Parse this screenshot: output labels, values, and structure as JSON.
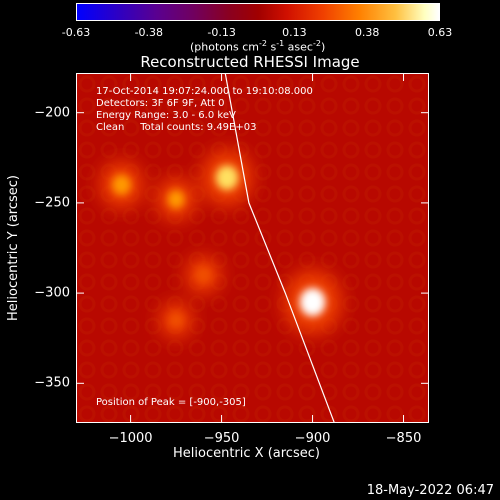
{
  "colorbar": {
    "ticks": [
      "-0.63",
      "-0.38",
      "-0.13",
      "0.13",
      "0.38",
      "0.63"
    ],
    "units_text": "(photons cm",
    "units_exp1": "-2",
    "units_mid": " s",
    "units_exp2": "-1",
    "units_mid2": " asec",
    "units_exp3": "-2",
    "units_end": ")"
  },
  "chart_data": {
    "type": "heatmap",
    "title": "Reconstructed RHESSI Image",
    "xlabel": "Heliocentric X (arcsec)",
    "ylabel": "Heliocentric Y (arcsec)",
    "xlim": [
      -1030,
      -836
    ],
    "ylim": [
      -372,
      -178
    ],
    "xticks": [
      -1000,
      -950,
      -900,
      -850
    ],
    "yticks": [
      -200,
      -250,
      -300,
      -350
    ],
    "value_range": [
      -0.63,
      0.63
    ],
    "colormap": "red-temperature",
    "sources": [
      {
        "x": -900,
        "y": -305,
        "value": 0.63
      },
      {
        "x": -947,
        "y": -236,
        "value": 0.52
      },
      {
        "x": -1005,
        "y": -240,
        "value": 0.38
      },
      {
        "x": -975,
        "y": -248,
        "value": 0.32
      },
      {
        "x": -960,
        "y": -290,
        "value": 0.25
      },
      {
        "x": -975,
        "y": -315,
        "value": 0.22
      }
    ],
    "limb_line": [
      [
        -948,
        -178
      ],
      [
        -935,
        -250
      ],
      [
        -915,
        -300
      ],
      [
        -888,
        -372
      ]
    ],
    "annotations": {
      "line1": "17-Oct-2014 19:07:24.000 to 19:10:08.000",
      "line2": "Detectors: 3F 6F 9F, Att 0",
      "line3": "Energy Range: 3.0 - 6.0 keV",
      "line4": "Clean     Total counts: 9.49E+03",
      "peak": "Position of Peak = [-900,-305]"
    }
  },
  "footer": {
    "timestamp": "18-May-2022 06:47"
  }
}
